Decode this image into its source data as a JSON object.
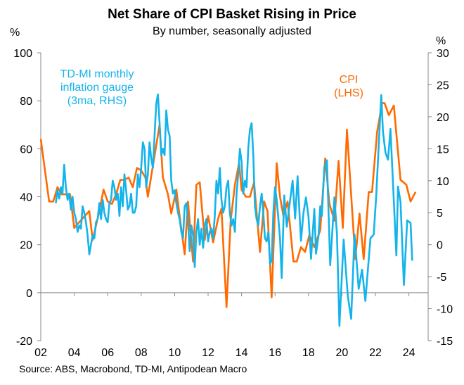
{
  "chart_data": {
    "type": "line",
    "title": "Net Share of CPI Basket Rising in Price",
    "subtitle": "By number, seasonally adjusted",
    "source": "Source: ABS, Macrobond, TD-MI, Antipodean Macro",
    "left_axis": {
      "unit": "%",
      "ylim": [
        -20,
        100
      ],
      "ticks": [
        "100",
        "80",
        "60",
        "40",
        "20",
        "0",
        "-20"
      ],
      "tick_values": [
        100,
        80,
        60,
        40,
        20,
        0,
        -20
      ]
    },
    "right_axis": {
      "unit": "%",
      "ylim": [
        -15,
        30
      ],
      "ticks": [
        "30",
        "25",
        "20",
        "15",
        "10",
        "5",
        "0",
        "-5",
        "-10",
        "-15"
      ],
      "tick_values": [
        30,
        25,
        20,
        15,
        10,
        5,
        0,
        -5,
        -10,
        -15
      ]
    },
    "x_axis": {
      "xlim": [
        2002,
        2025
      ],
      "ticks": [
        "02",
        "04",
        "06",
        "08",
        "10",
        "12",
        "14",
        "16",
        "18",
        "20",
        "22",
        "24"
      ],
      "tick_values": [
        2002,
        2004,
        2006,
        2008,
        2010,
        2012,
        2014,
        2016,
        2018,
        2020,
        2022,
        2024
      ]
    },
    "zero_line": 0,
    "grid": false,
    "series": [
      {
        "name": "CPI",
        "axis": "left",
        "annotation": [
          "CPI",
          "(LHS)"
        ],
        "color": "#FF6A00",
        "points": [
          [
            2002.0,
            64
          ],
          [
            2002.5,
            38
          ],
          [
            2002.75,
            38
          ],
          [
            2003.0,
            44
          ],
          [
            2003.25,
            41
          ],
          [
            2003.5,
            41
          ],
          [
            2003.75,
            41
          ],
          [
            2004.0,
            27
          ],
          [
            2004.5,
            31
          ],
          [
            2004.9,
            34
          ],
          [
            2005.1,
            22
          ],
          [
            2005.5,
            34
          ],
          [
            2005.75,
            43
          ],
          [
            2006.0,
            38
          ],
          [
            2006.25,
            37
          ],
          [
            2006.5,
            41
          ],
          [
            2006.75,
            47
          ],
          [
            2007.0,
            47
          ],
          [
            2007.25,
            48
          ],
          [
            2007.5,
            44
          ],
          [
            2007.75,
            52
          ],
          [
            2008.0,
            51
          ],
          [
            2008.25,
            48
          ],
          [
            2008.4,
            40
          ],
          [
            2008.8,
            57
          ],
          [
            2009.1,
            70
          ],
          [
            2009.3,
            48
          ],
          [
            2009.6,
            41
          ],
          [
            2009.8,
            33
          ],
          [
            2010.1,
            43
          ],
          [
            2010.3,
            32
          ],
          [
            2010.6,
            16
          ],
          [
            2010.8,
            38
          ],
          [
            2011.1,
            13
          ],
          [
            2011.3,
            45
          ],
          [
            2011.5,
            46
          ],
          [
            2011.8,
            22
          ],
          [
            2012.0,
            32
          ],
          [
            2012.3,
            21
          ],
          [
            2012.6,
            31
          ],
          [
            2012.8,
            35
          ],
          [
            2013.1,
            -6
          ],
          [
            2013.35,
            30
          ],
          [
            2013.6,
            45
          ],
          [
            2013.85,
            54
          ],
          [
            2014.0,
            43
          ],
          [
            2014.25,
            40
          ],
          [
            2014.5,
            40
          ],
          [
            2014.75,
            46
          ],
          [
            2015.1,
            17
          ],
          [
            2015.35,
            38
          ],
          [
            2015.55,
            34
          ],
          [
            2015.8,
            -2
          ],
          [
            2016.1,
            54
          ],
          [
            2016.3,
            40
          ],
          [
            2016.5,
            32
          ],
          [
            2016.75,
            38
          ],
          [
            2017.1,
            13
          ],
          [
            2017.3,
            13
          ],
          [
            2017.55,
            19
          ],
          [
            2017.8,
            17
          ],
          [
            2018.05,
            24
          ],
          [
            2018.35,
            19
          ],
          [
            2018.7,
            26
          ],
          [
            2019.0,
            56
          ],
          [
            2019.25,
            37
          ],
          [
            2019.55,
            30
          ],
          [
            2019.8,
            55
          ],
          [
            2020.05,
            27
          ],
          [
            2020.3,
            68
          ],
          [
            2020.8,
            14
          ],
          [
            2021.05,
            33
          ],
          [
            2021.3,
            14
          ],
          [
            2021.6,
            42
          ],
          [
            2021.8,
            42
          ],
          [
            2022.1,
            67
          ],
          [
            2022.4,
            79
          ],
          [
            2022.55,
            79
          ],
          [
            2022.8,
            74
          ],
          [
            2023.1,
            78
          ],
          [
            2023.5,
            47
          ],
          [
            2023.85,
            45
          ],
          [
            2024.1,
            38
          ],
          [
            2024.4,
            42
          ]
        ]
      },
      {
        "name": "TD-MI monthly inflation gauge (3ma, RHS)",
        "axis": "right",
        "annotation": [
          "TD-MI monthly",
          "inflation gauge",
          "(3ma, RHS)"
        ],
        "color": "#14B4EB",
        "points": [
          [
            2002.9,
            6.5
          ],
          [
            2003.0,
            8.5
          ],
          [
            2003.1,
            7.2
          ],
          [
            2003.2,
            9
          ],
          [
            2003.3,
            8
          ],
          [
            2003.4,
            12.5
          ],
          [
            2003.5,
            9
          ],
          [
            2003.6,
            7
          ],
          [
            2003.7,
            8
          ],
          [
            2003.8,
            5.5
          ],
          [
            2003.9,
            7.5
          ],
          [
            2004.0,
            5
          ],
          [
            2004.1,
            4
          ],
          [
            2004.2,
            2
          ],
          [
            2004.3,
            3
          ],
          [
            2004.4,
            2.5
          ],
          [
            2004.5,
            6
          ],
          [
            2004.6,
            5
          ],
          [
            2004.7,
            3.5
          ],
          [
            2004.8,
            1.5
          ],
          [
            2004.9,
            -1.5
          ],
          [
            2005.0,
            0
          ],
          [
            2005.1,
            1.5
          ],
          [
            2005.2,
            1
          ],
          [
            2005.3,
            3.5
          ],
          [
            2005.4,
            4
          ],
          [
            2005.5,
            6.5
          ],
          [
            2005.6,
            4
          ],
          [
            2005.7,
            7
          ],
          [
            2005.8,
            5
          ],
          [
            2005.9,
            4
          ],
          [
            2006.0,
            3.5
          ],
          [
            2006.1,
            6.5
          ],
          [
            2006.2,
            7
          ],
          [
            2006.3,
            10
          ],
          [
            2006.4,
            9
          ],
          [
            2006.5,
            7
          ],
          [
            2006.6,
            8
          ],
          [
            2006.7,
            4.5
          ],
          [
            2006.8,
            9
          ],
          [
            2006.9,
            6
          ],
          [
            2007.0,
            11
          ],
          [
            2007.1,
            8.5
          ],
          [
            2007.2,
            5.5
          ],
          [
            2007.3,
            6
          ],
          [
            2007.4,
            8
          ],
          [
            2007.5,
            5
          ],
          [
            2007.6,
            5
          ],
          [
            2007.7,
            6
          ],
          [
            2007.8,
            11
          ],
          [
            2007.9,
            9
          ],
          [
            2008.0,
            12
          ],
          [
            2008.1,
            16
          ],
          [
            2008.2,
            15
          ],
          [
            2008.3,
            9
          ],
          [
            2008.4,
            11
          ],
          [
            2008.5,
            16
          ],
          [
            2008.6,
            13.5
          ],
          [
            2008.7,
            12
          ],
          [
            2008.8,
            17
          ],
          [
            2008.9,
            22
          ],
          [
            2009.0,
            23.5
          ],
          [
            2009.1,
            19
          ],
          [
            2009.2,
            14
          ],
          [
            2009.3,
            15
          ],
          [
            2009.4,
            14
          ],
          [
            2009.5,
            21
          ],
          [
            2009.6,
            18
          ],
          [
            2009.7,
            17
          ],
          [
            2009.8,
            10
          ],
          [
            2009.9,
            8
          ],
          [
            2010.0,
            8.5
          ],
          [
            2010.1,
            6.5
          ],
          [
            2010.2,
            5
          ],
          [
            2010.3,
            4
          ],
          [
            2010.4,
            2
          ],
          [
            2010.5,
            1
          ],
          [
            2010.6,
            6
          ],
          [
            2010.7,
            6.5
          ],
          [
            2010.8,
            4
          ],
          [
            2010.9,
            -1
          ],
          [
            2011.0,
            3
          ],
          [
            2011.1,
            1.5
          ],
          [
            2011.2,
            -3.5
          ],
          [
            2011.3,
            2
          ],
          [
            2011.4,
            4
          ],
          [
            2011.5,
            0
          ],
          [
            2011.6,
            2.5
          ],
          [
            2011.7,
            -0.5
          ],
          [
            2011.8,
            3
          ],
          [
            2011.9,
            4
          ],
          [
            2012.0,
            0.5
          ],
          [
            2012.1,
            2
          ],
          [
            2012.2,
            2.5
          ],
          [
            2012.3,
            1
          ],
          [
            2012.4,
            4.5
          ],
          [
            2012.5,
            10
          ],
          [
            2012.6,
            8
          ],
          [
            2012.7,
            12
          ],
          [
            2012.8,
            7
          ],
          [
            2012.9,
            5
          ],
          [
            2013.0,
            6
          ],
          [
            2013.1,
            9
          ],
          [
            2013.2,
            10
          ],
          [
            2013.3,
            5
          ],
          [
            2013.4,
            3
          ],
          [
            2013.5,
            4
          ],
          [
            2013.6,
            2
          ],
          [
            2013.7,
            8
          ],
          [
            2013.8,
            11
          ],
          [
            2013.9,
            15
          ],
          [
            2014.0,
            13
          ],
          [
            2014.1,
            8
          ],
          [
            2014.2,
            10
          ],
          [
            2014.3,
            9
          ],
          [
            2014.4,
            15
          ],
          [
            2014.5,
            18
          ],
          [
            2014.6,
            19
          ],
          [
            2014.7,
            14
          ],
          [
            2014.8,
            6
          ],
          [
            2014.9,
            4
          ],
          [
            2015.0,
            3
          ],
          [
            2015.1,
            6
          ],
          [
            2015.2,
            8
          ],
          [
            2015.3,
            5
          ],
          [
            2015.4,
            1
          ],
          [
            2015.5,
            0.5
          ],
          [
            2015.6,
            2
          ],
          [
            2015.7,
            -3
          ],
          [
            2015.8,
            -2.5
          ],
          [
            2015.9,
            5
          ],
          [
            2016.0,
            9
          ],
          [
            2016.1,
            7
          ],
          [
            2016.2,
            4
          ],
          [
            2016.3,
            1
          ],
          [
            2016.4,
            -5.2
          ],
          [
            2016.55,
            7.7
          ],
          [
            2016.7,
            2.8
          ],
          [
            2017.05,
            10
          ],
          [
            2017.2,
            4.1
          ],
          [
            2017.35,
            10.7
          ],
          [
            2017.55,
            0.6
          ],
          [
            2017.7,
            5
          ],
          [
            2017.85,
            7.4
          ],
          [
            2018.0,
            4.4
          ],
          [
            2018.15,
            -2.2
          ],
          [
            2018.35,
            5.6
          ],
          [
            2018.45,
            -1.4
          ],
          [
            2018.6,
            1.4
          ],
          [
            2018.7,
            6
          ],
          [
            2018.8,
            4.5
          ],
          [
            2018.95,
            12.2
          ],
          [
            2019.1,
            13.2
          ],
          [
            2019.3,
            -3.2
          ],
          [
            2019.55,
            7.4
          ],
          [
            2019.7,
            1.6
          ],
          [
            2019.85,
            -12.7
          ],
          [
            2020.1,
            0.8
          ],
          [
            2020.35,
            -8
          ],
          [
            2020.55,
            -11.6
          ],
          [
            2020.75,
            1.6
          ],
          [
            2021.0,
            -6.9
          ],
          [
            2021.2,
            -3.9
          ],
          [
            2021.4,
            -8.8
          ],
          [
            2021.7,
            1
          ],
          [
            2021.9,
            1.6
          ],
          [
            2022.05,
            7.8
          ],
          [
            2022.35,
            23.4
          ],
          [
            2022.45,
            17.7
          ],
          [
            2022.6,
            14.4
          ],
          [
            2022.75,
            13.3
          ],
          [
            2022.9,
            18.1
          ],
          [
            2023.25,
            -1.7
          ],
          [
            2023.35,
            9.1
          ],
          [
            2023.5,
            6.7
          ],
          [
            2023.7,
            -6.3
          ],
          [
            2023.9,
            3.8
          ],
          [
            2024.1,
            3.4
          ],
          [
            2024.2,
            -2.5
          ]
        ]
      }
    ]
  }
}
